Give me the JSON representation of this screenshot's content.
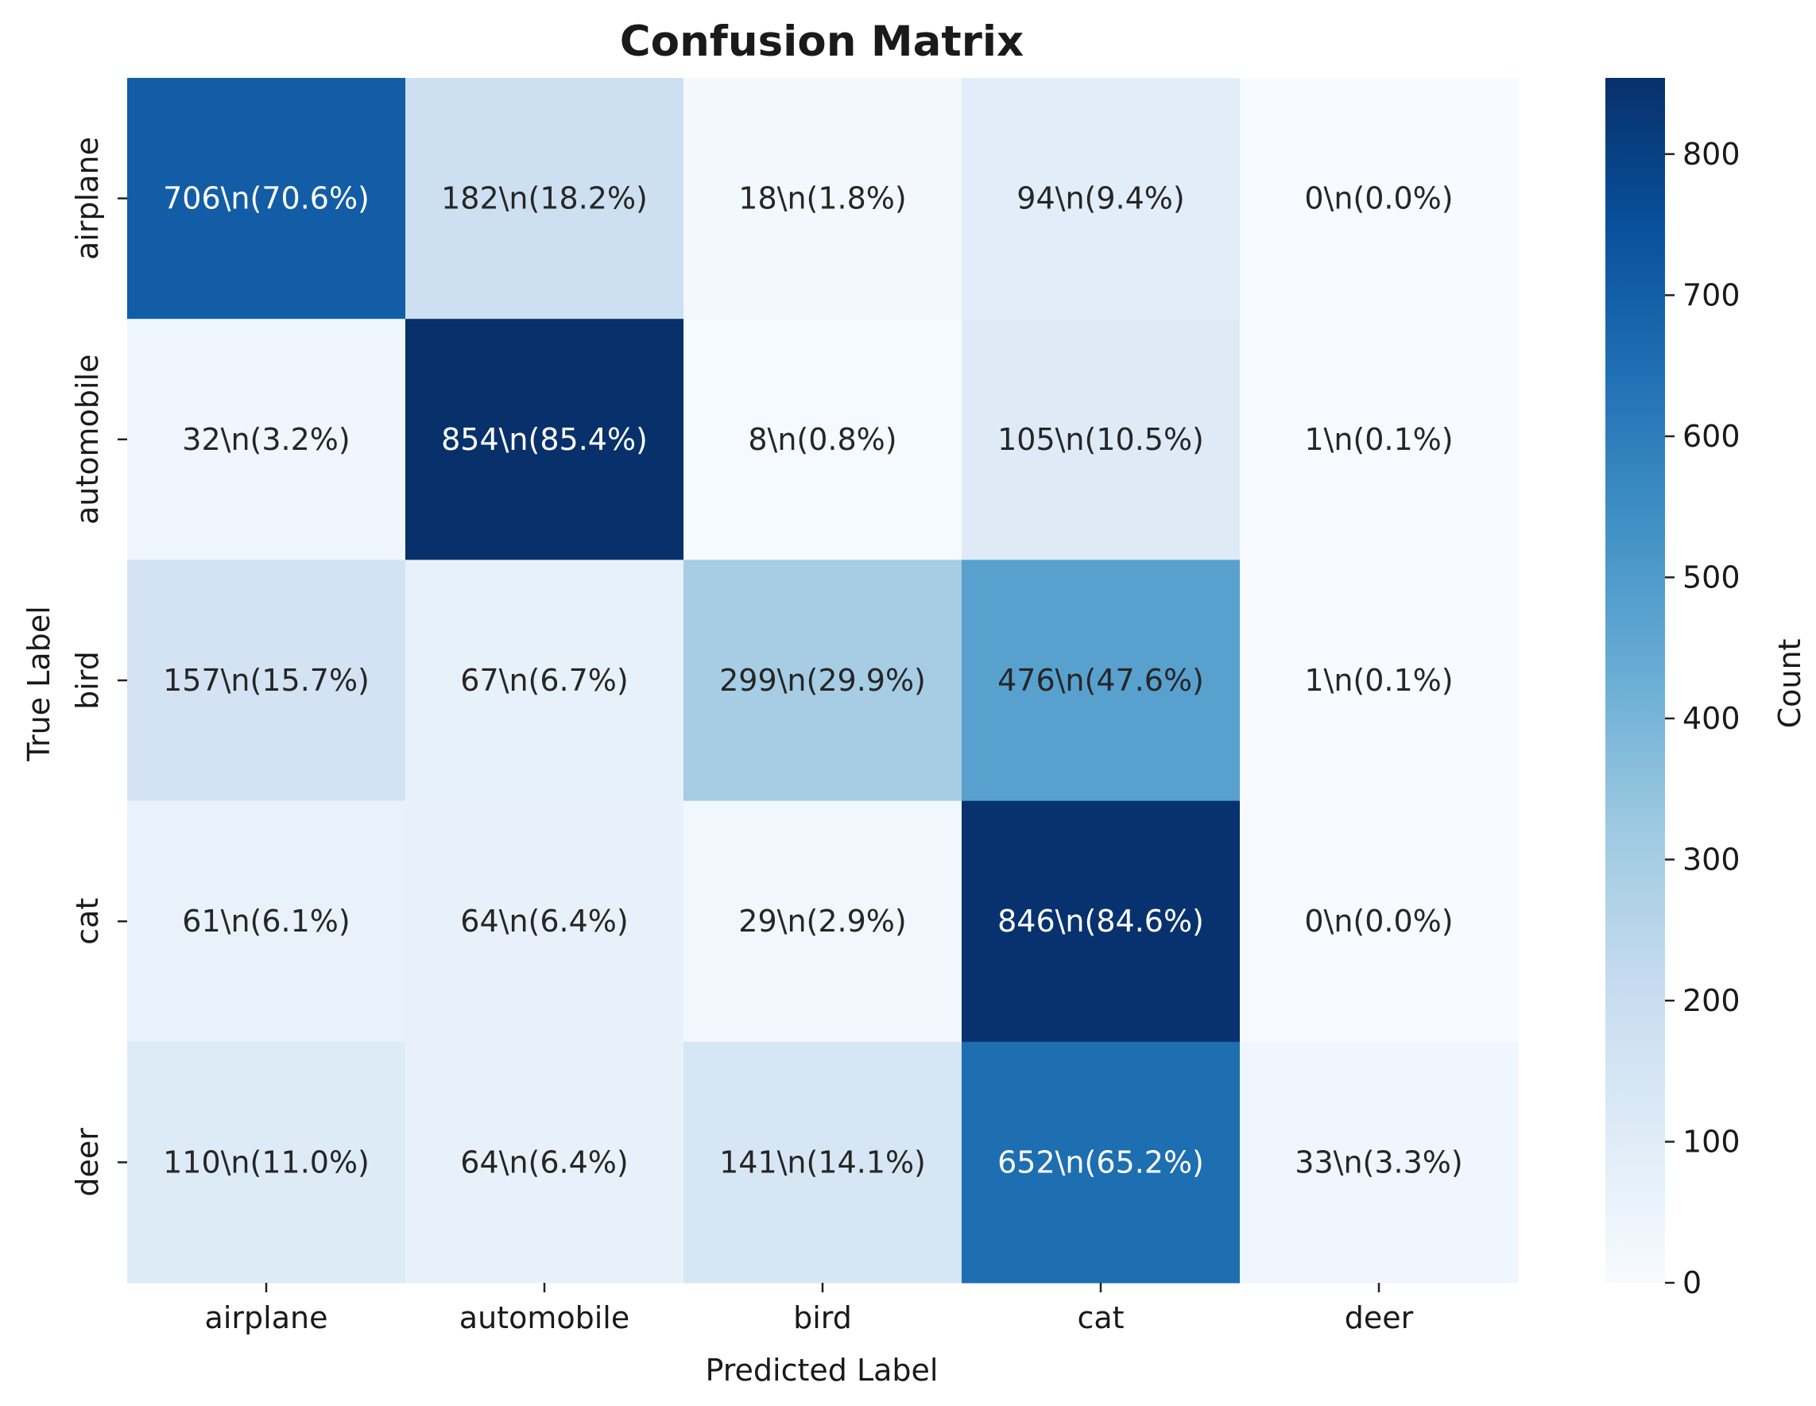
{
  "chart_data": {
    "type": "heatmap",
    "title": "Confusion Matrix",
    "xlabel": "Predicted Label",
    "ylabel": "True Label",
    "x_categories": [
      "airplane",
      "automobile",
      "bird",
      "cat",
      "deer"
    ],
    "y_categories": [
      "airplane",
      "automobile",
      "bird",
      "cat",
      "deer"
    ],
    "values": [
      [
        706,
        182,
        18,
        94,
        0
      ],
      [
        32,
        854,
        8,
        105,
        1
      ],
      [
        157,
        67,
        299,
        476,
        1
      ],
      [
        61,
        64,
        29,
        846,
        0
      ],
      [
        110,
        64,
        141,
        652,
        33
      ]
    ],
    "cell_labels": [
      [
        "706\\n(70.6%)",
        "182\\n(18.2%)",
        "18\\n(1.8%)",
        "94\\n(9.4%)",
        "0\\n(0.0%)"
      ],
      [
        "32\\n(3.2%)",
        "854\\n(85.4%)",
        "8\\n(0.8%)",
        "105\\n(10.5%)",
        "1\\n(0.1%)"
      ],
      [
        "157\\n(15.7%)",
        "67\\n(6.7%)",
        "299\\n(29.9%)",
        "476\\n(47.6%)",
        "1\\n(0.1%)"
      ],
      [
        "61\\n(6.1%)",
        "64\\n(6.4%)",
        "29\\n(2.9%)",
        "846\\n(84.6%)",
        "0\\n(0.0%)"
      ],
      [
        "110\\n(11.0%)",
        "64\\n(6.4%)",
        "141\\n(14.1%)",
        "652\\n(65.2%)",
        "33\\n(3.3%)"
      ]
    ],
    "colorbar": {
      "label": "Count",
      "min": 0,
      "max": 854,
      "ticks": [
        0,
        100,
        200,
        300,
        400,
        500,
        600,
        700,
        800
      ],
      "colormap": "Blues"
    },
    "grid": false,
    "legend": "none"
  }
}
